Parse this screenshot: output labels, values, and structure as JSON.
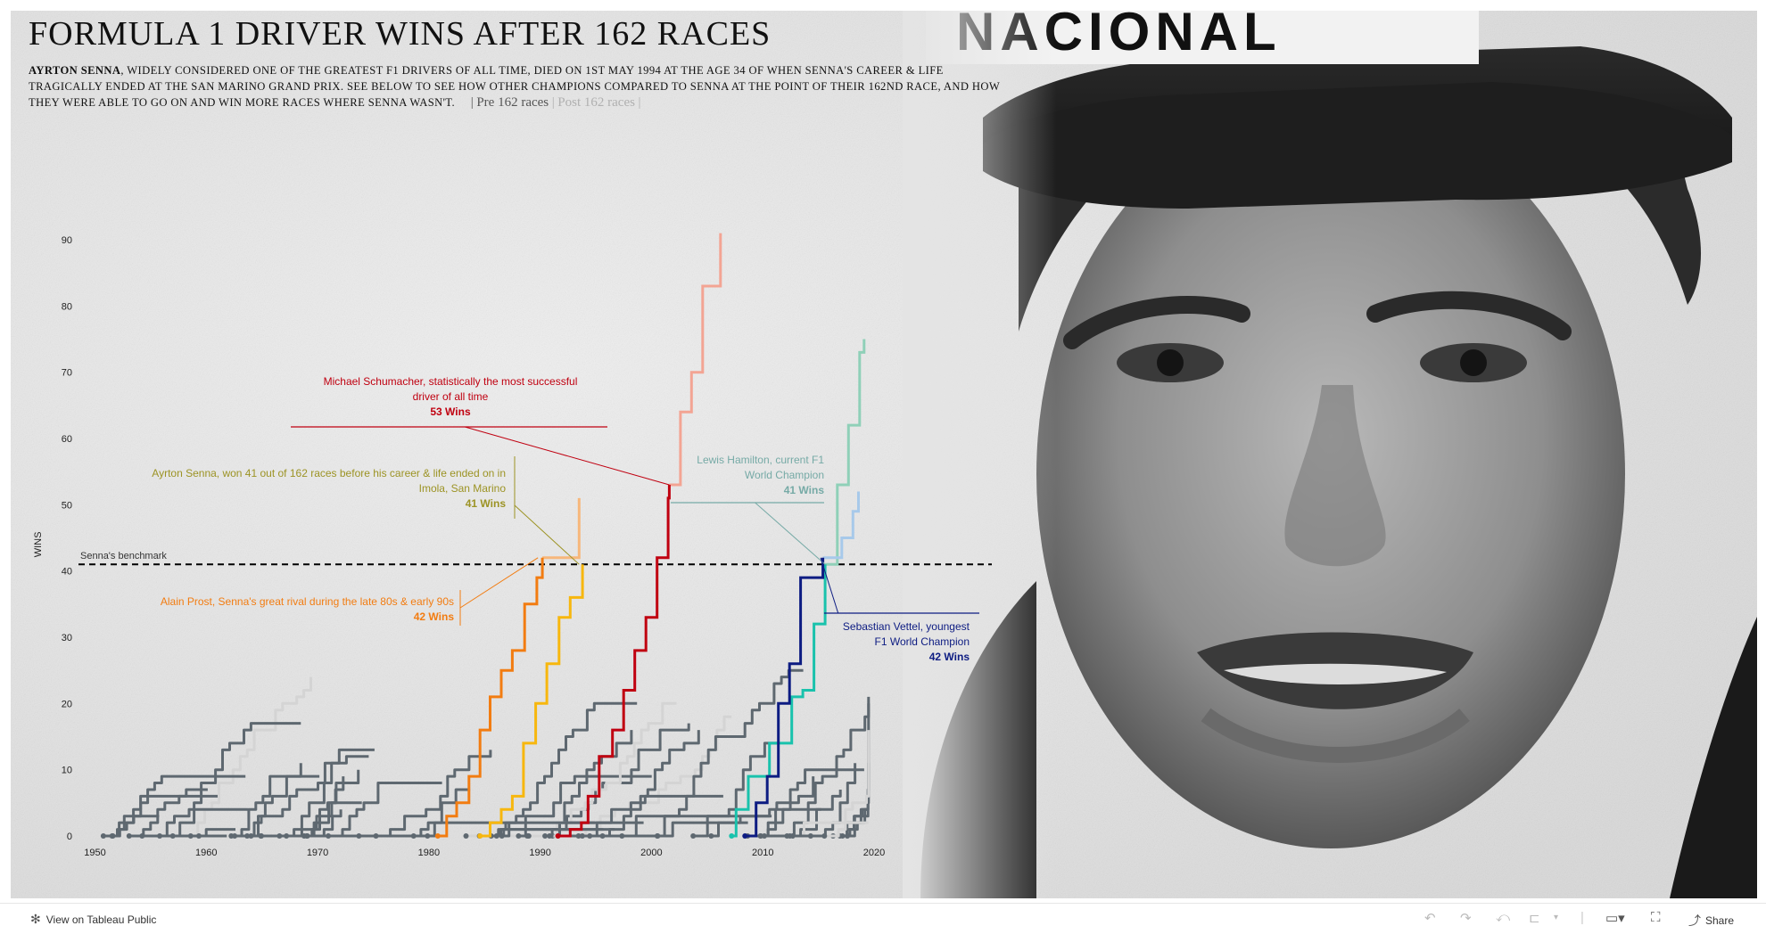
{
  "header": {
    "title": "FORMULA 1 DRIVER WINS AFTER 162 RACES",
    "desc_lead": "AYRTON SENNA",
    "desc_body": ", WIDELY CONSIDERED ONE OF THE GREATEST F1 DRIVERS OF ALL TIME, DIED ON 1ST MAY 1994 AT THE AGE 34 OF WHEN SENNA'S CAREER & LIFE TRAGICALLY ENDED AT THE SAN MARINO GRAND PRIX. SEE BELOW TO SEE HOW OTHER CHAMPIONS COMPARED TO SENNA AT THE POINT OF THEIR 162ND RACE, AND HOW THEY WERE ABLE TO GO ON AND WIN MORE RACES WHERE SENNA WASN'T.",
    "toggle_bar_left": "|",
    "toggle_pre": "Pre 162 races",
    "toggle_bar_mid": "|",
    "toggle_post": "Post 162 races",
    "toggle_bar_right": "|"
  },
  "footer": {
    "view_label": "View on Tableau Public",
    "share_label": "Share",
    "icons": [
      "undo-icon",
      "redo-icon",
      "revert-icon",
      "pause-icon",
      "dropdown-icon",
      "comment-icon",
      "fullscreen-icon",
      "share-icon"
    ]
  },
  "colors": {
    "schumacher": "#c00010",
    "schumacher_post": "#f3a493",
    "hamilton": "#19c2ac",
    "hamilton_post": "#8fd0b8",
    "vettel": "#0d1c82",
    "vettel_post": "#a7c9ea",
    "prost": "#f27c11",
    "prost_post": "#f7b77b",
    "senna": "#f7b70e",
    "senna_label": "#9c9324",
    "hamilton_label": "#76aaa6",
    "other": "#5e6870",
    "other_light": "#d4d4d4",
    "benchmark": "#000000"
  },
  "chart_data": {
    "type": "line",
    "xlabel": "",
    "ylabel": "WINS",
    "xlim": [
      1949,
      2020
    ],
    "ylim": [
      0,
      90
    ],
    "x_ticks": [
      "1950",
      "1960",
      "1970",
      "1980",
      "1990",
      "2000",
      "2010",
      "2020"
    ],
    "y_ticks": [
      "0",
      "10",
      "20",
      "30",
      "40",
      "50",
      "60",
      "70",
      "80",
      "90"
    ],
    "grid": false,
    "benchmark": {
      "label": "Senna's benchmark",
      "y": 41
    },
    "series": [
      {
        "name": "Michael Schumacher",
        "points": [
          [
            1991.6,
            0
          ],
          [
            1992.7,
            1
          ],
          [
            1993.7,
            2
          ],
          [
            1994.3,
            6
          ],
          [
            1995.3,
            12
          ],
          [
            1996.5,
            16
          ],
          [
            1997.5,
            22
          ],
          [
            1998.5,
            28
          ],
          [
            1999.5,
            33
          ],
          [
            2000.5,
            42
          ],
          [
            2001.5,
            51
          ],
          [
            2001.6,
            53
          ]
        ],
        "post": [
          [
            2001.6,
            53
          ],
          [
            2002.6,
            64
          ],
          [
            2003.6,
            70
          ],
          [
            2004.6,
            83
          ],
          [
            2006.2,
            91
          ]
        ]
      },
      {
        "name": "Alain Prost",
        "points": [
          [
            1980.8,
            0
          ],
          [
            1981.6,
            3
          ],
          [
            1982.5,
            5
          ],
          [
            1983.6,
            9
          ],
          [
            1984.6,
            16
          ],
          [
            1985.5,
            21
          ],
          [
            1986.5,
            25
          ],
          [
            1987.5,
            28
          ],
          [
            1988.6,
            35
          ],
          [
            1989.7,
            39
          ],
          [
            1990.2,
            42
          ]
        ],
        "post": [
          [
            1990.2,
            42
          ],
          [
            1993.5,
            51
          ]
        ]
      },
      {
        "name": "Ayrton Senna",
        "points": [
          [
            1984.6,
            0
          ],
          [
            1985.5,
            2
          ],
          [
            1986.5,
            4
          ],
          [
            1987.5,
            6
          ],
          [
            1988.5,
            14
          ],
          [
            1989.6,
            20
          ],
          [
            1990.6,
            26
          ],
          [
            1991.7,
            33
          ],
          [
            1992.7,
            36
          ],
          [
            1993.8,
            41
          ]
        ]
      },
      {
        "name": "Lewis Hamilton",
        "points": [
          [
            2007.2,
            0
          ],
          [
            2007.6,
            4
          ],
          [
            2008.7,
            9
          ],
          [
            2010.6,
            14
          ],
          [
            2012.6,
            21
          ],
          [
            2013.6,
            22
          ],
          [
            2014.6,
            32
          ],
          [
            2015.6,
            41
          ]
        ],
        "post": [
          [
            2015.6,
            41
          ],
          [
            2016.7,
            53
          ],
          [
            2017.7,
            62
          ],
          [
            2018.7,
            73
          ],
          [
            2019.1,
            75
          ]
        ]
      },
      {
        "name": "Sebastian Vettel",
        "points": [
          [
            2008.4,
            0
          ],
          [
            2009.4,
            5
          ],
          [
            2010.4,
            9
          ],
          [
            2011.4,
            20
          ],
          [
            2012.4,
            26
          ],
          [
            2013.4,
            39
          ],
          [
            2014.5,
            39
          ],
          [
            2015.4,
            42
          ]
        ],
        "post": [
          [
            2015.4,
            42
          ],
          [
            2017.1,
            45
          ],
          [
            2018.1,
            49
          ],
          [
            2018.6,
            52
          ]
        ]
      }
    ],
    "annotations": [
      {
        "key": "schumacher",
        "line1": "Michael Schumacher, statistically the most successful",
        "line2": "driver of all time",
        "wins": "53 Wins"
      },
      {
        "key": "senna",
        "line1": "Ayrton Senna, won 41 out of 162 races before his career & life ended on in",
        "line2": "Imola, San Marino",
        "wins": "41 Wins"
      },
      {
        "key": "hamilton",
        "line1": "Lewis Hamilton, current F1",
        "line2": "World Champion",
        "wins": "41 Wins"
      },
      {
        "key": "prost",
        "line1": "Alain Prost, Senna's great rival during the late 80s & early 90s",
        "line2": "",
        "wins": "42 Wins"
      },
      {
        "key": "vettel",
        "line1": "Sebastian Vettel, youngest",
        "line2": "F1 World Champion",
        "wins": "42 Wins"
      }
    ]
  }
}
